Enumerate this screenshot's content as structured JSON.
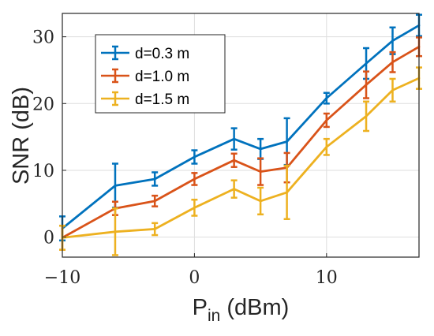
{
  "chart_data": {
    "type": "line",
    "title": "",
    "xlabel": {
      "main": "P",
      "subscript": "in",
      "suffix": " (dBm)"
    },
    "ylabel": "SNR (dB)",
    "xlim": [
      -10,
      17
    ],
    "ylim": [
      -3,
      33.5
    ],
    "xticks": [
      -10,
      0,
      10
    ],
    "yticks": [
      0,
      10,
      20,
      30
    ],
    "xtick_labels": [
      "−10",
      "0",
      "10"
    ],
    "ytick_labels": [
      "0",
      "10",
      "20",
      "30"
    ],
    "grid": true,
    "legend_position": "top-left",
    "x": [
      -10,
      -6,
      -3,
      0,
      3,
      5,
      7,
      10,
      13,
      15,
      17
    ],
    "series": [
      {
        "name": "d=0.3 m",
        "color": "#0072BD",
        "values": [
          1.3,
          7.7,
          8.7,
          12.0,
          14.7,
          13.2,
          14.3,
          20.8,
          26.0,
          29.4,
          31.7
        ],
        "errors": [
          1.8,
          3.3,
          1.0,
          1.0,
          1.6,
          1.5,
          3.5,
          0.8,
          2.3,
          2.0,
          1.6
        ]
      },
      {
        "name": "d=1.0 m",
        "color": "#D95319",
        "values": [
          -0.1,
          4.3,
          5.4,
          8.7,
          11.5,
          9.8,
          10.4,
          17.5,
          22.8,
          26.2,
          28.5
        ],
        "errors": [
          1.8,
          1.0,
          0.8,
          0.9,
          1.0,
          2.0,
          2.2,
          1.0,
          2.0,
          1.5,
          1.4
        ]
      },
      {
        "name": "d=1.5 m",
        "color": "#EDB120",
        "values": [
          -0.1,
          0.8,
          1.2,
          4.4,
          7.2,
          5.4,
          6.7,
          13.5,
          18.1,
          22.0,
          23.8
        ],
        "errors": [
          1.8,
          3.5,
          0.9,
          1.2,
          1.3,
          2.0,
          4.0,
          1.2,
          2.2,
          1.7,
          1.6
        ]
      }
    ]
  }
}
